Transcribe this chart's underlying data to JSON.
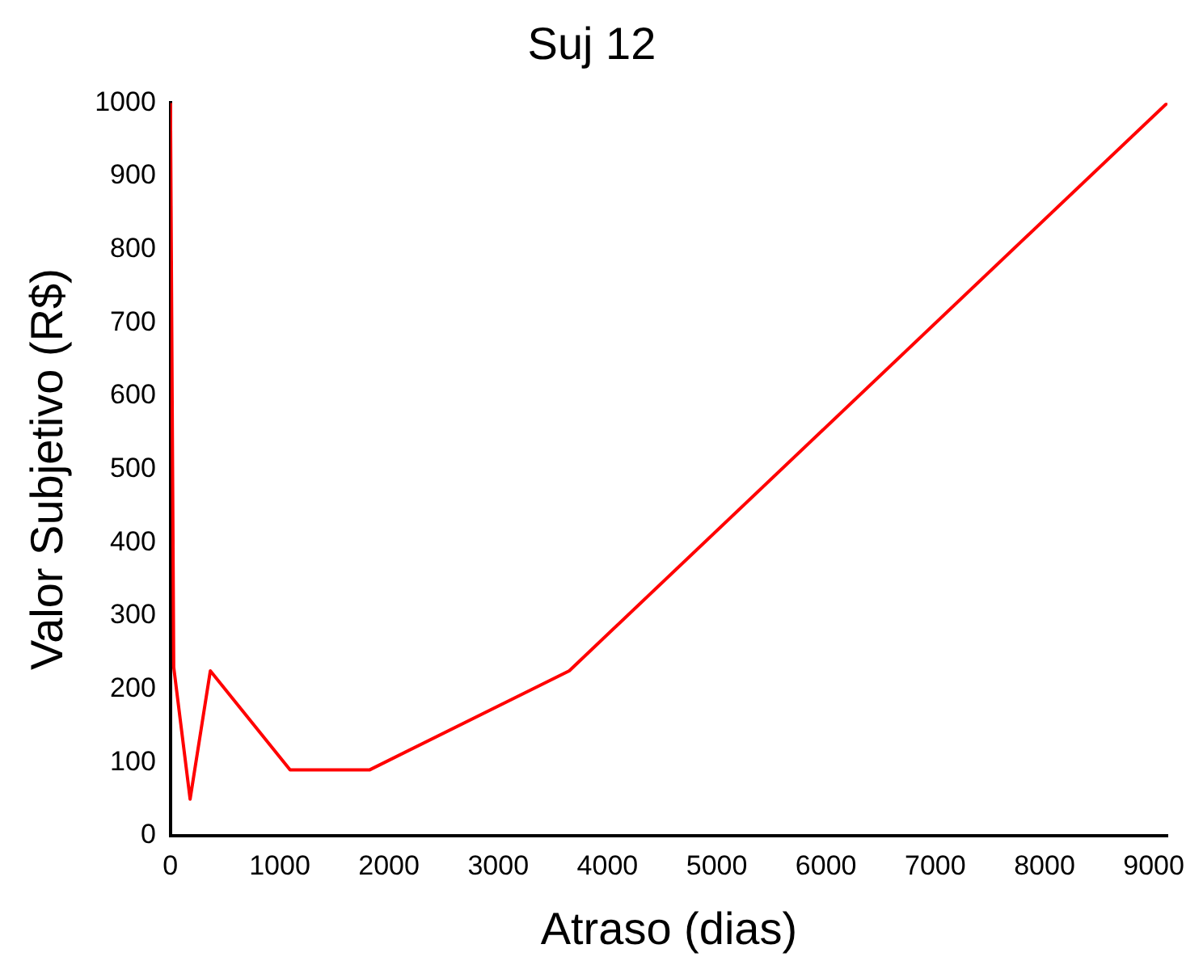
{
  "chart_data": {
    "type": "line",
    "title": "Suj 12",
    "xlabel": "Atraso (dias)",
    "ylabel": "Valor Subjetivo (R$)",
    "x": [
      0,
      30,
      180,
      365,
      1095,
      1825,
      3650,
      9125
    ],
    "series": [
      {
        "color": "#ff0000",
        "values": [
          1000,
          230,
          50,
          225,
          90,
          90,
          225,
          1000
        ]
      }
    ],
    "xlim": [
      0,
      9125
    ],
    "xticks": [
      0,
      1000,
      2000,
      3000,
      4000,
      5000,
      6000,
      7000,
      8000,
      9000
    ],
    "ylim": [
      0,
      1000
    ],
    "yticks": [
      0,
      100,
      200,
      300,
      400,
      500,
      600,
      700,
      800,
      900,
      1000
    ],
    "grid": false,
    "legend": false,
    "marker": "none",
    "line_style": "solid"
  }
}
